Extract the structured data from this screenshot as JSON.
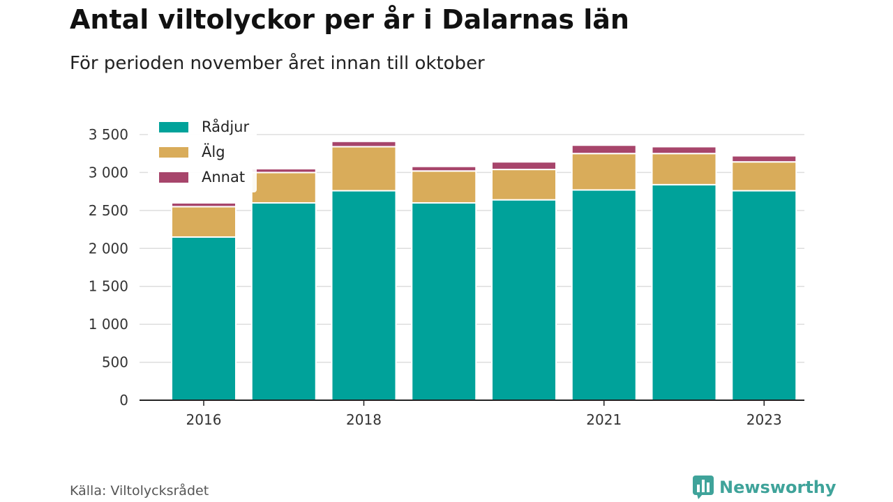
{
  "header": {
    "title": "Antal viltolyckor per år i Dalarnas län",
    "subtitle": "För perioden november året innan till oktober"
  },
  "footer": {
    "source": "Källa: Viltolycksrådet",
    "brand": "Newsworthy",
    "brand_icon": "newsworthy-logo-icon"
  },
  "colors": {
    "Rådjur": "#00a29a",
    "Älg": "#d9ac5a",
    "Annat": "#a7456b",
    "brand": "#3fa39a"
  },
  "chart_data": {
    "type": "bar",
    "stacked": true,
    "categories": [
      "2016",
      "2017",
      "2018",
      "2019",
      "2020",
      "2021",
      "2022",
      "2023"
    ],
    "x_tick_labels": [
      "2016",
      "",
      "2018",
      "",
      "",
      "2021",
      "",
      "2023"
    ],
    "series": [
      {
        "name": "Rådjur",
        "values": [
          2150,
          2600,
          2760,
          2600,
          2640,
          2770,
          2840,
          2760
        ]
      },
      {
        "name": "Älg",
        "values": [
          400,
          400,
          580,
          420,
          400,
          480,
          410,
          380
        ]
      },
      {
        "name": "Annat",
        "values": [
          50,
          50,
          70,
          60,
          100,
          110,
          90,
          80
        ]
      }
    ],
    "ylim": [
      0,
      3500
    ],
    "yticks": [
      0,
      500,
      1000,
      1500,
      2000,
      2500,
      3000,
      3500
    ],
    "ytick_labels": [
      "0",
      "500",
      "1 000",
      "1 500",
      "2 000",
      "2 500",
      "3 000",
      "3 500"
    ],
    "grid": true,
    "legend_position": "top-left",
    "xlabel": "",
    "ylabel": ""
  }
}
